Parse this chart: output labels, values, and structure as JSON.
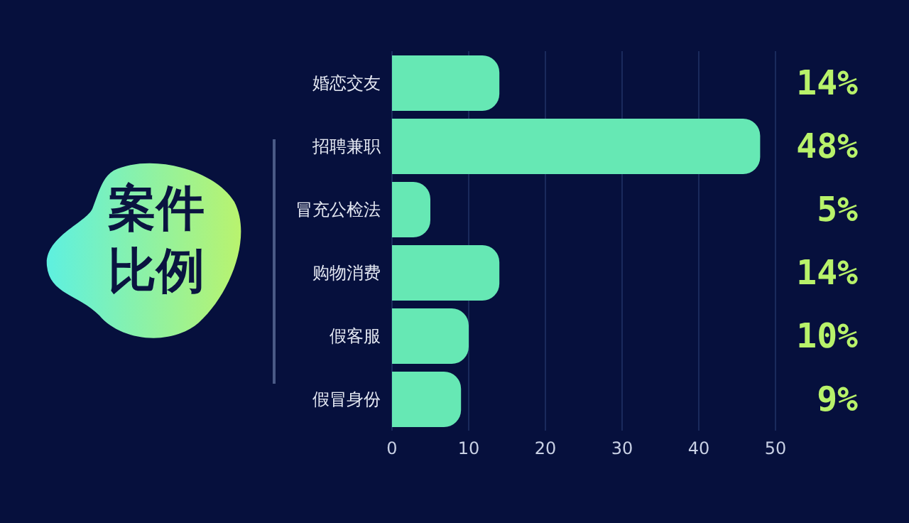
{
  "chart_data": {
    "type": "bar",
    "orientation": "horizontal",
    "title": "案件比例",
    "categories": [
      "婚恋交友",
      "招聘兼职",
      "冒充公检法",
      "购物消费",
      "假客服",
      "假冒身份"
    ],
    "values": [
      14,
      48,
      5,
      14,
      10,
      9
    ],
    "value_labels": [
      "14%",
      "48%",
      "5%",
      "14%",
      "10%",
      "9%"
    ],
    "color": "#66e8b4",
    "xlim": [
      0,
      50
    ],
    "xticks": [
      0,
      10,
      20,
      30,
      40,
      50
    ],
    "grid": "x"
  }
}
